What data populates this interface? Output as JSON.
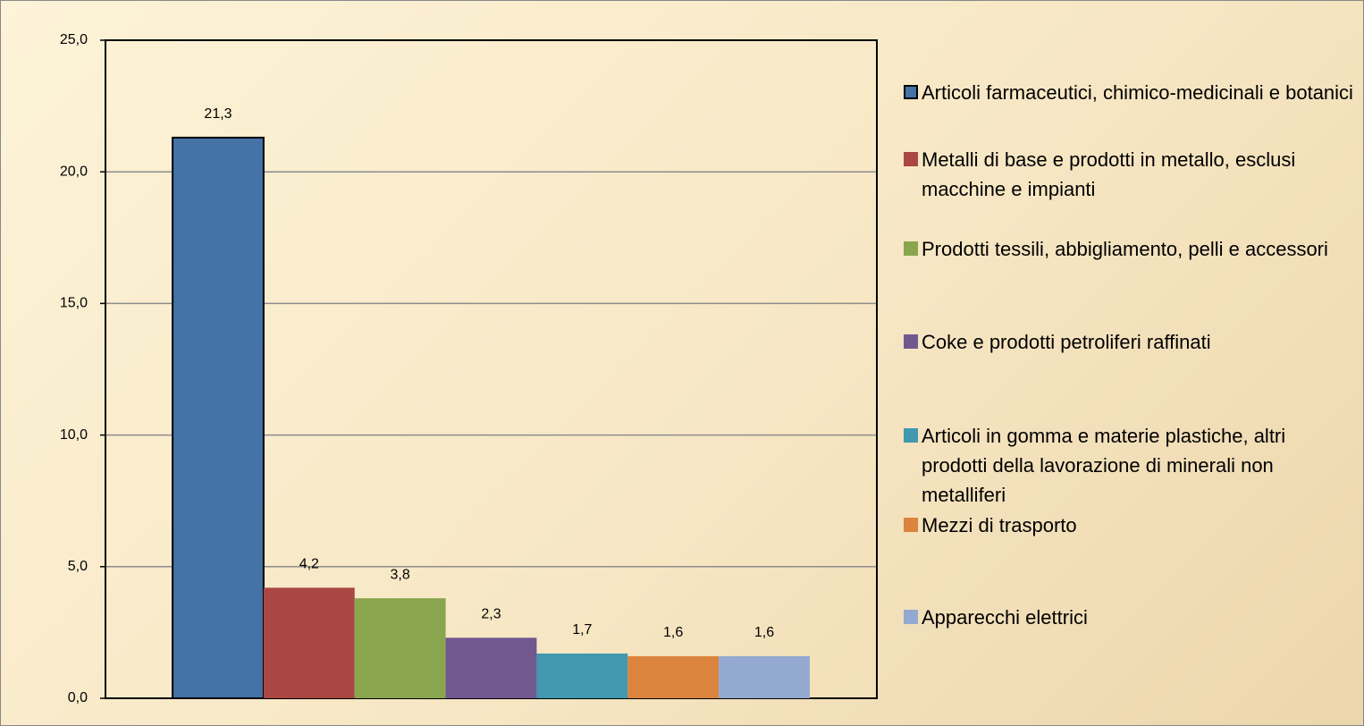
{
  "chart_data": {
    "type": "bar",
    "categories": [
      null
    ],
    "series": [
      {
        "name": "Articoli farmaceutici, chimico-medicinali e botanici",
        "color": "#4572a7",
        "values": [
          21.3
        ],
        "value_labels": [
          "21,3"
        ]
      },
      {
        "name": "Metalli di base e prodotti in metallo, esclusi macchine e impianti",
        "color": "#aa4643",
        "values": [
          4.2
        ],
        "value_labels": [
          "4,2"
        ]
      },
      {
        "name": "Prodotti tessili, abbigliamento, pelli e accessori",
        "color": "#89a54e",
        "values": [
          3.8
        ],
        "value_labels": [
          "3,8"
        ]
      },
      {
        "name": "Coke e prodotti petroliferi raffinati",
        "color": "#71588f",
        "values": [
          2.3
        ],
        "value_labels": [
          "2,3"
        ]
      },
      {
        "name": "Articoli in gomma e materie plastiche, altri prodotti della lavorazione di minerali non metalliferi",
        "color": "#4198af",
        "values": [
          1.7
        ],
        "value_labels": [
          "1,7"
        ]
      },
      {
        "name": "Mezzi di trasporto",
        "color": "#db843d",
        "values": [
          1.6
        ],
        "value_labels": [
          "1,6"
        ]
      },
      {
        "name": "Apparecchi elettrici",
        "color": "#93a9cf",
        "values": [
          1.6
        ],
        "value_labels": [
          "1,6"
        ]
      }
    ],
    "ylim": [
      0,
      25
    ],
    "yticks": [
      {
        "value": 0,
        "label": "0,0"
      },
      {
        "value": 5,
        "label": "5,0"
      },
      {
        "value": 10,
        "label": "10,0"
      },
      {
        "value": 15,
        "label": "15,0"
      },
      {
        "value": 20,
        "label": "20,0"
      },
      {
        "value": 25,
        "label": "25,0"
      }
    ],
    "grid": true
  }
}
